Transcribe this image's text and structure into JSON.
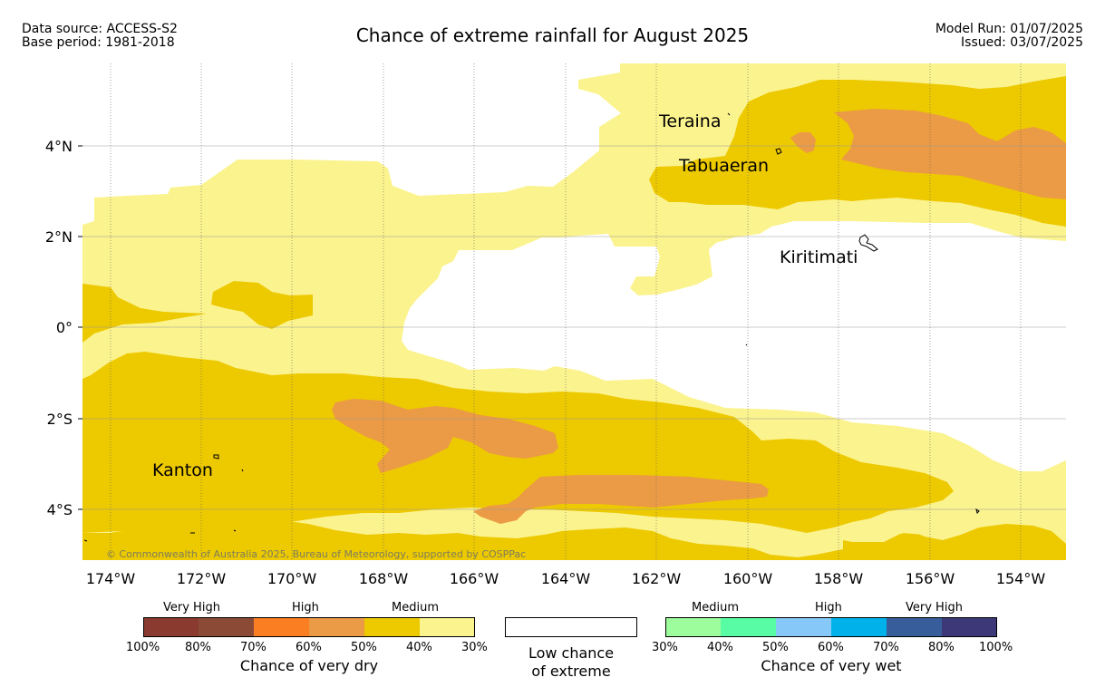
{
  "header": {
    "data_source": "Data source: ACCESS-S2",
    "base_period": "Base period: 1981-2018",
    "title": "Chance of extreme rainfall for August 2025",
    "model_run": "Model Run: 01/07/2025",
    "issued": "Issued: 03/07/2025"
  },
  "map": {
    "lon_labels": [
      "174°W",
      "172°W",
      "170°W",
      "168°W",
      "166°W",
      "164°W",
      "162°W",
      "160°W",
      "158°W",
      "156°W",
      "154°W"
    ],
    "lat_labels": [
      "4°N",
      "2°N",
      "0°",
      "2°S",
      "4°S"
    ],
    "places": {
      "teraina": "Teraina",
      "tabuaeran": "Tabuaeran",
      "kiritimati": "Kiritimati",
      "kanton": "Kanton"
    },
    "copyright": "© Commonwealth of Australia 2025, Bureau of Meteorology, supported by COSPPac",
    "colors": {
      "medium_dry_light": "#fbf38e",
      "medium_dry": "#edc900",
      "high_dry": "#eb9a45",
      "land_outline": "#000000"
    }
  },
  "legend": {
    "dry": {
      "groups": [
        "Very High",
        "High",
        "Medium"
      ],
      "colors": [
        "#8b3a2f",
        "#8b4a36",
        "#fb7e22",
        "#eb9a45",
        "#edc900",
        "#fbf38e"
      ],
      "ticks": [
        "100%",
        "80%",
        "70%",
        "60%",
        "50%",
        "40%",
        "30%"
      ],
      "caption": "Chance of very dry"
    },
    "low": {
      "line1": "Low chance",
      "line2": "of extreme"
    },
    "wet": {
      "groups": [
        "Medium",
        "High",
        "Very High"
      ],
      "colors": [
        "#9dfc9b",
        "#57fca4",
        "#86c9f8",
        "#00b1ea",
        "#375e9b",
        "#3d3878"
      ],
      "ticks": [
        "30%",
        "40%",
        "50%",
        "60%",
        "70%",
        "80%",
        "100%"
      ],
      "caption": "Chance of very wet"
    }
  }
}
